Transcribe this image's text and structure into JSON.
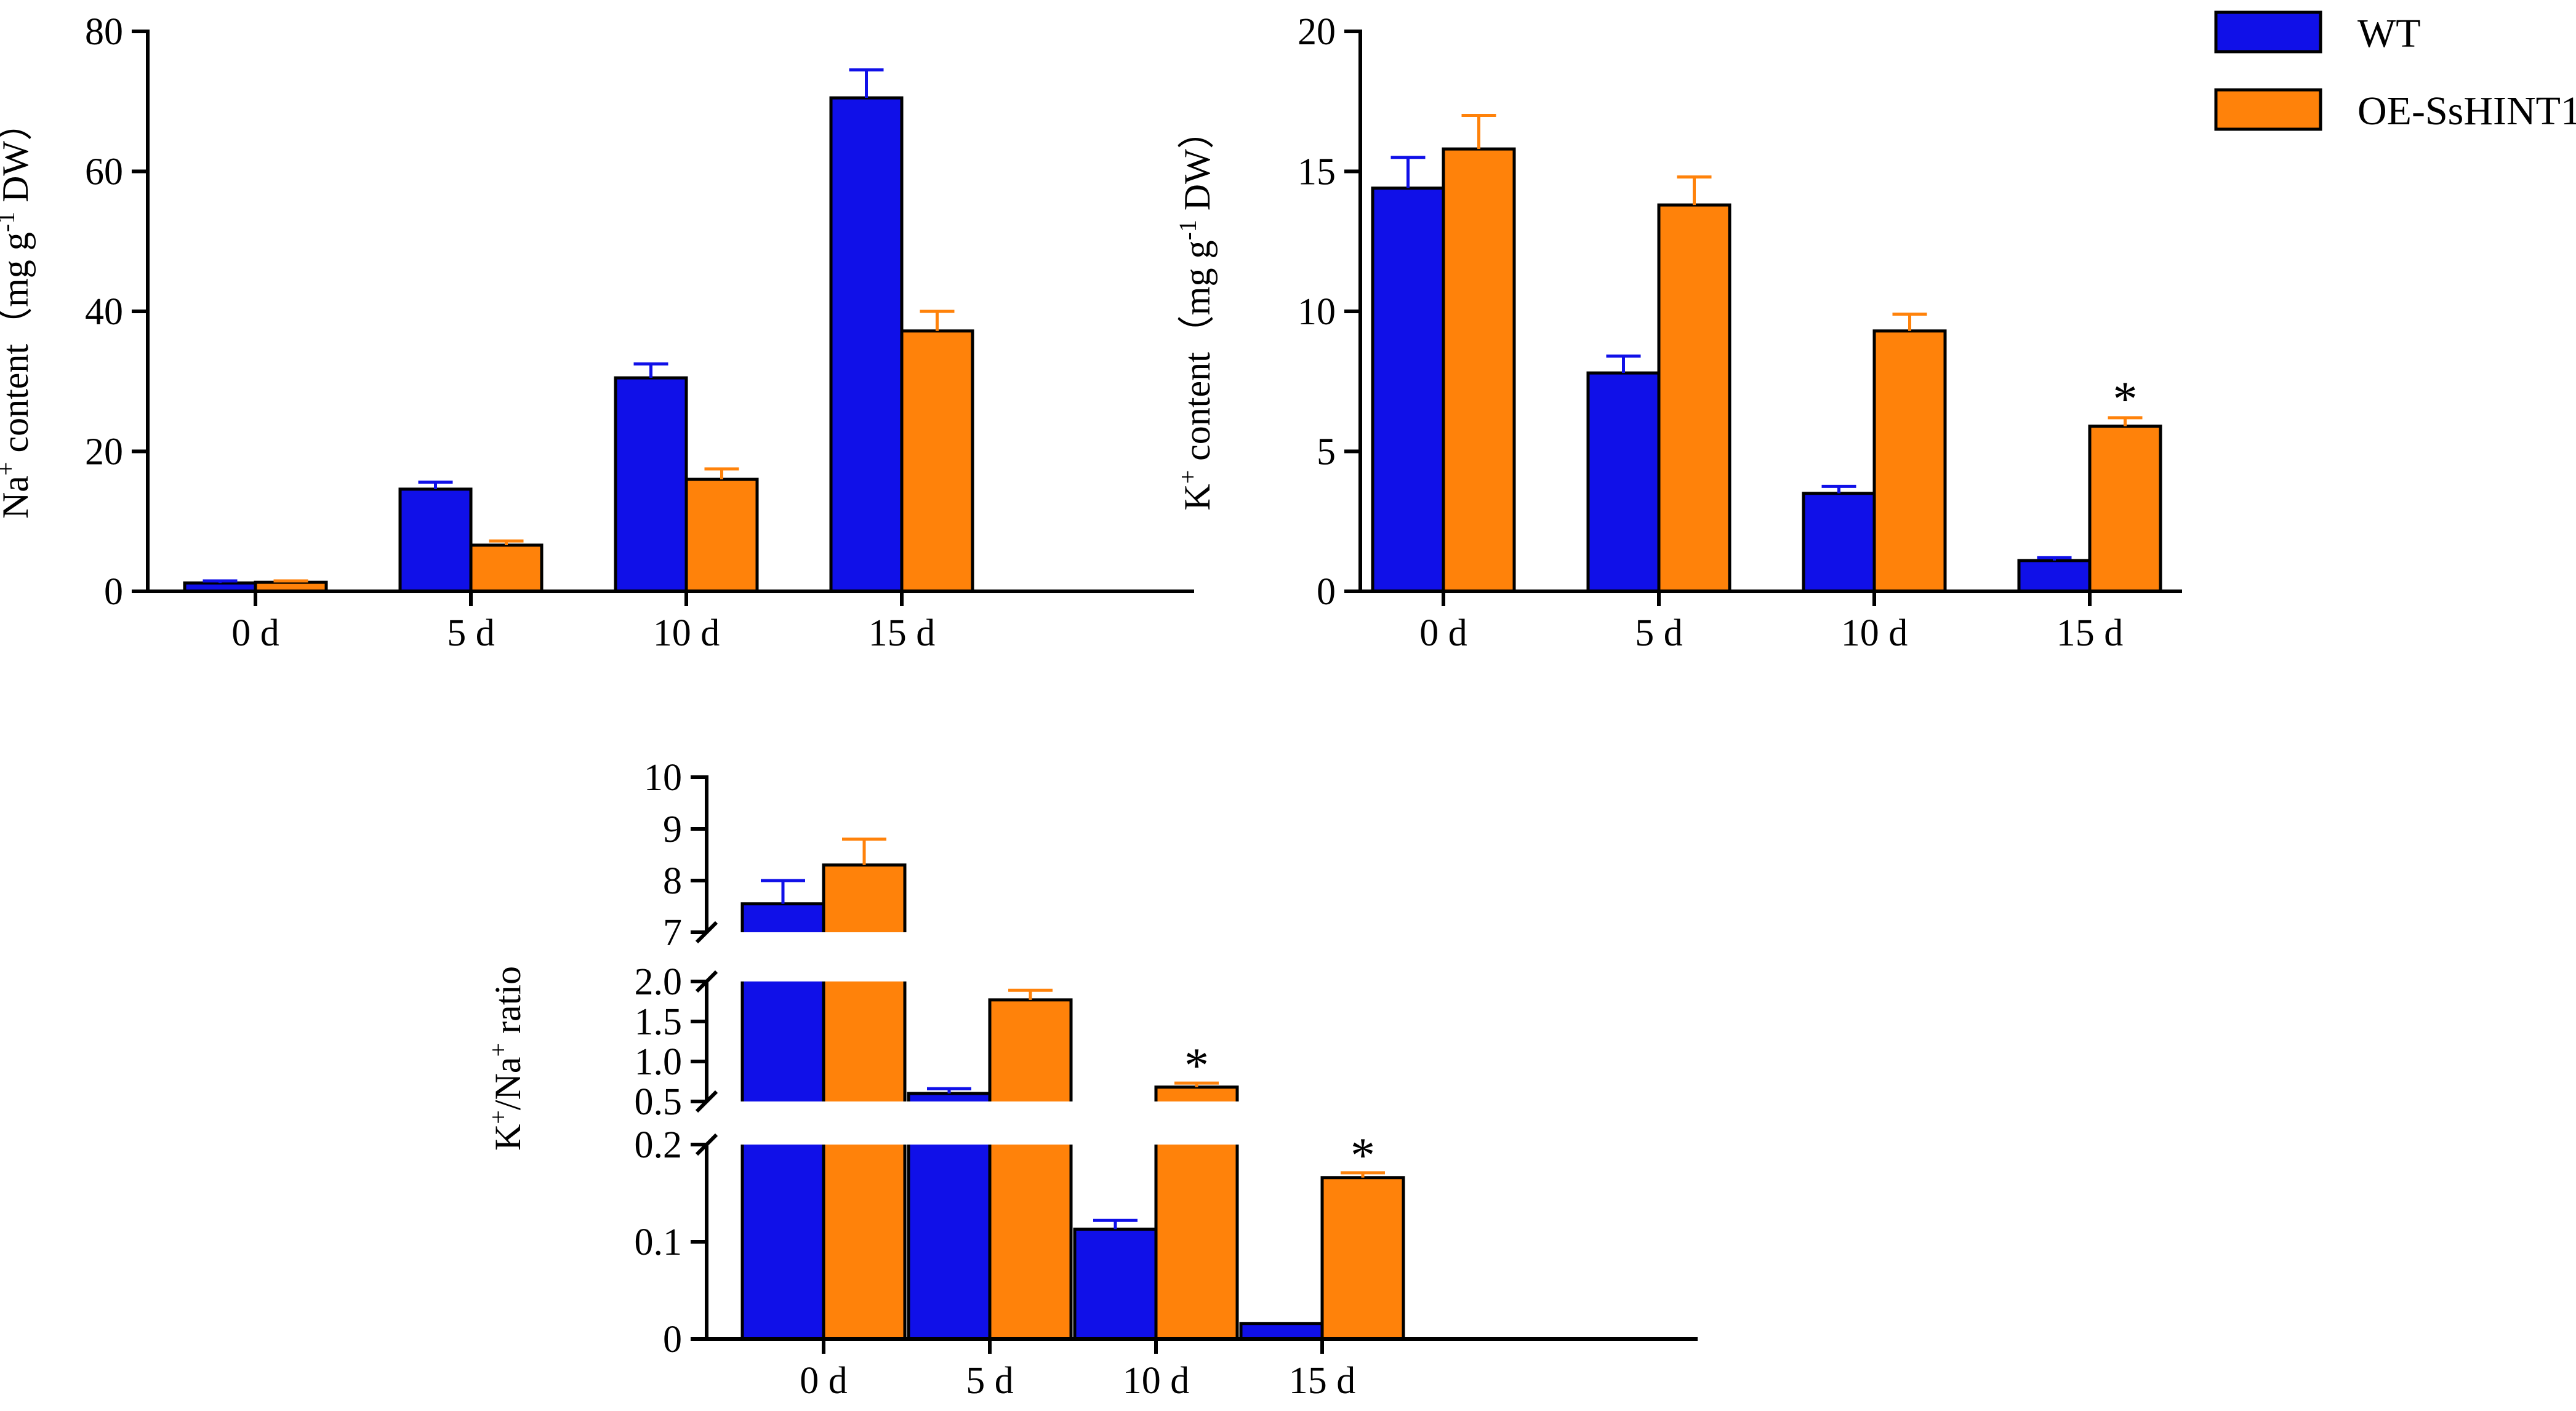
{
  "colors": {
    "wt": "#1010e8",
    "oe": "#ff820a",
    "axis": "#000000"
  },
  "legend": {
    "items": [
      "WT",
      "OE-SsHINT1"
    ]
  },
  "chart_data": [
    {
      "id": "na",
      "type": "bar",
      "title": "",
      "xlabel": "",
      "ylabel_main": "Na",
      "ylabel_sup": "+",
      "ylabel_rest": " content（mg g",
      "ylabel_sup2": "-1",
      "ylabel_end": " DW）",
      "categories": [
        "0 d",
        "5 d",
        "10 d",
        "15 d"
      ],
      "ylim": [
        0,
        80
      ],
      "yticks": [
        0,
        20,
        40,
        60,
        80
      ],
      "series": [
        {
          "name": "WT",
          "values": [
            1.2,
            14.6,
            30.5,
            70.5
          ],
          "errors": [
            0.3,
            1.0,
            2.0,
            4.0
          ]
        },
        {
          "name": "OE-SsHINT1",
          "values": [
            1.3,
            6.6,
            16.0,
            37.2
          ],
          "errors": [
            0.2,
            0.6,
            1.5,
            2.8
          ]
        }
      ],
      "annotations": []
    },
    {
      "id": "k",
      "type": "bar",
      "title": "",
      "xlabel": "",
      "ylabel_main": "K",
      "ylabel_sup": "+",
      "ylabel_rest": " content（mg g",
      "ylabel_sup2": "-1",
      "ylabel_end": " DW）",
      "categories": [
        "0 d",
        "5 d",
        "10 d",
        "15 d"
      ],
      "ylim": [
        0,
        20
      ],
      "yticks": [
        0,
        5,
        10,
        15,
        20
      ],
      "series": [
        {
          "name": "WT",
          "values": [
            14.4,
            7.8,
            3.5,
            1.1
          ],
          "errors": [
            1.1,
            0.6,
            0.25,
            0.1
          ]
        },
        {
          "name": "OE-SsHINT1",
          "values": [
            15.8,
            13.8,
            9.3,
            5.9
          ],
          "errors": [
            1.2,
            1.0,
            0.6,
            0.3
          ]
        }
      ],
      "annotations": [
        {
          "text": "*",
          "category": "15 d",
          "series": "OE-SsHINT1"
        }
      ]
    },
    {
      "id": "ratio",
      "type": "bar",
      "title": "",
      "xlabel": "",
      "ylabel_main": "K",
      "ylabel_sup": "+",
      "ylabel_rest": "/Na",
      "ylabel_sup2": "+",
      "ylabel_end": " ratio",
      "categories": [
        "0 d",
        "5 d",
        "10 d",
        "15 d"
      ],
      "axis_break": true,
      "segments": [
        {
          "range": [
            0,
            0.2
          ],
          "ticks": [
            0,
            0.1,
            0.2
          ],
          "labels": [
            "0",
            "0.1",
            "0.2"
          ]
        },
        {
          "range": [
            0.5,
            2.0
          ],
          "ticks": [
            0.5,
            1.0,
            1.5,
            2.0
          ],
          "labels": [
            "0.5",
            "1.0",
            "1.5",
            "2.0"
          ]
        },
        {
          "range": [
            7,
            10
          ],
          "ticks": [
            7,
            8,
            9,
            10
          ],
          "labels": [
            "7",
            "8",
            "9",
            "10"
          ]
        }
      ],
      "series": [
        {
          "name": "WT",
          "values": [
            7.55,
            0.6,
            0.113,
            0.016
          ],
          "errors": [
            0.45,
            0.06,
            0.009,
            0.0
          ]
        },
        {
          "name": "OE-SsHINT1",
          "values": [
            8.3,
            1.77,
            0.68,
            0.166
          ],
          "errors": [
            0.5,
            0.12,
            0.05,
            0.005
          ]
        }
      ],
      "annotations": [
        {
          "text": "*",
          "category": "10 d",
          "series": "OE-SsHINT1"
        },
        {
          "text": "*",
          "category": "15 d",
          "series": "OE-SsHINT1"
        }
      ]
    }
  ]
}
